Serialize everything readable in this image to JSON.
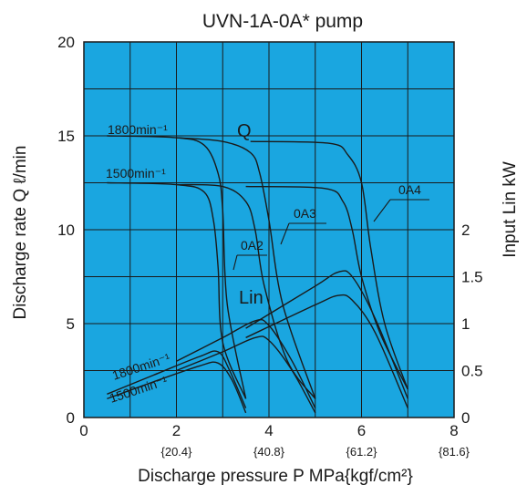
{
  "chart_data": {
    "type": "line",
    "title": "UVN-1A-0A* pump",
    "xlabel": "Discharge pressure P  MPa{kgf/cm²}",
    "ylabel_left": "Discharge rate Q ℓ/min",
    "ylabel_right": "Input Lin kW",
    "xlim": [
      0,
      8
    ],
    "ylim_left": [
      0,
      20
    ],
    "ylim_right": [
      0,
      4
    ],
    "x_ticks": [
      "0",
      "2",
      "4",
      "6",
      "8"
    ],
    "x_ticks_kgf": [
      "{20.4}",
      "{40.8}",
      "{61.2}",
      "{81.6}"
    ],
    "y_ticks_left": [
      "0",
      "5",
      "10",
      "15",
      "20"
    ],
    "y_ticks_right": [
      "0",
      "0.5",
      "1",
      "1.5",
      "2"
    ],
    "grid": true,
    "background_color": "#1aa6e0",
    "line_color": "#1a1a1a",
    "annotations": {
      "q_label": "Q",
      "lin_label": "Lin",
      "speed_1800_flow": "1800min⁻¹",
      "speed_1500_flow": "1500min⁻¹",
      "speed_1800_power": "1800min⁻¹",
      "speed_1500_power": "1500min⁻¹",
      "variant_0a2": "0A2",
      "variant_0a3": "0A3",
      "variant_0a4": "0A4"
    },
    "flow_series": [
      {
        "group": "0A2",
        "speed": 1800,
        "points": [
          [
            0.5,
            15.0
          ],
          [
            2.0,
            14.9
          ],
          [
            2.6,
            14.5
          ],
          [
            2.9,
            13.0
          ],
          [
            3.0,
            11.0
          ],
          [
            3.1,
            6.0
          ],
          [
            3.5,
            1.0
          ]
        ]
      },
      {
        "group": "0A2",
        "speed": 1500,
        "points": [
          [
            0.5,
            12.5
          ],
          [
            2.0,
            12.4
          ],
          [
            2.6,
            12.0
          ],
          [
            2.8,
            10.5
          ],
          [
            2.9,
            8.0
          ],
          [
            3.0,
            4.0
          ],
          [
            3.5,
            1.0
          ]
        ]
      },
      {
        "group": "0A3",
        "speed": 1800,
        "points": [
          [
            2.0,
            14.9
          ],
          [
            3.0,
            14.7
          ],
          [
            3.6,
            14.1
          ],
          [
            3.8,
            13.0
          ],
          [
            4.0,
            10.5
          ],
          [
            4.3,
            6.0
          ],
          [
            5.0,
            1.0
          ]
        ]
      },
      {
        "group": "0A3",
        "speed": 1500,
        "points": [
          [
            2.0,
            12.4
          ],
          [
            3.0,
            12.3
          ],
          [
            3.5,
            11.5
          ],
          [
            3.7,
            10.0
          ],
          [
            3.9,
            7.0
          ],
          [
            4.4,
            3.0
          ],
          [
            5.0,
            1.0
          ]
        ]
      },
      {
        "group": "0A4",
        "speed": 1800,
        "points": [
          [
            3.6,
            14.7
          ],
          [
            5.3,
            14.6
          ],
          [
            5.7,
            14.0
          ],
          [
            6.0,
            12.5
          ],
          [
            6.2,
            9.0
          ],
          [
            6.5,
            5.0
          ],
          [
            7.0,
            1.5
          ]
        ]
      },
      {
        "group": "0A4",
        "speed": 1500,
        "points": [
          [
            3.5,
            12.3
          ],
          [
            5.2,
            12.2
          ],
          [
            5.6,
            11.5
          ],
          [
            5.8,
            10.0
          ],
          [
            6.0,
            7.5
          ],
          [
            6.4,
            4.5
          ],
          [
            7.0,
            1.5
          ]
        ]
      }
    ],
    "power_series": [
      {
        "group": "0A2",
        "speed": 1800,
        "points": [
          [
            0.5,
            0.25
          ],
          [
            1.5,
            0.45
          ],
          [
            2.5,
            0.65
          ],
          [
            2.9,
            0.7
          ],
          [
            3.15,
            0.5
          ],
          [
            3.5,
            0.1
          ]
        ]
      },
      {
        "group": "0A2",
        "speed": 1500,
        "points": [
          [
            0.5,
            0.2
          ],
          [
            1.5,
            0.38
          ],
          [
            2.5,
            0.55
          ],
          [
            2.9,
            0.58
          ],
          [
            3.2,
            0.4
          ],
          [
            3.5,
            0.05
          ]
        ]
      },
      {
        "group": "0A3",
        "speed": 1800,
        "points": [
          [
            2.0,
            0.6
          ],
          [
            3.0,
            0.85
          ],
          [
            3.7,
            1.03
          ],
          [
            4.0,
            0.98
          ],
          [
            4.5,
            0.6
          ],
          [
            5.0,
            0.1
          ]
        ]
      },
      {
        "group": "0A3",
        "speed": 1500,
        "points": [
          [
            2.0,
            0.5
          ],
          [
            3.0,
            0.7
          ],
          [
            3.7,
            0.85
          ],
          [
            4.0,
            0.82
          ],
          [
            4.5,
            0.5
          ],
          [
            5.0,
            0.05
          ]
        ]
      },
      {
        "group": "0A4",
        "speed": 1800,
        "points": [
          [
            3.5,
            0.95
          ],
          [
            5.0,
            1.4
          ],
          [
            5.5,
            1.55
          ],
          [
            5.8,
            1.5
          ],
          [
            6.3,
            1.05
          ],
          [
            7.0,
            0.2
          ]
        ]
      },
      {
        "group": "0A4",
        "speed": 1500,
        "points": [
          [
            3.5,
            0.85
          ],
          [
            5.0,
            1.2
          ],
          [
            5.5,
            1.3
          ],
          [
            5.8,
            1.25
          ],
          [
            6.3,
            0.9
          ],
          [
            7.0,
            0.1
          ]
        ]
      }
    ]
  }
}
